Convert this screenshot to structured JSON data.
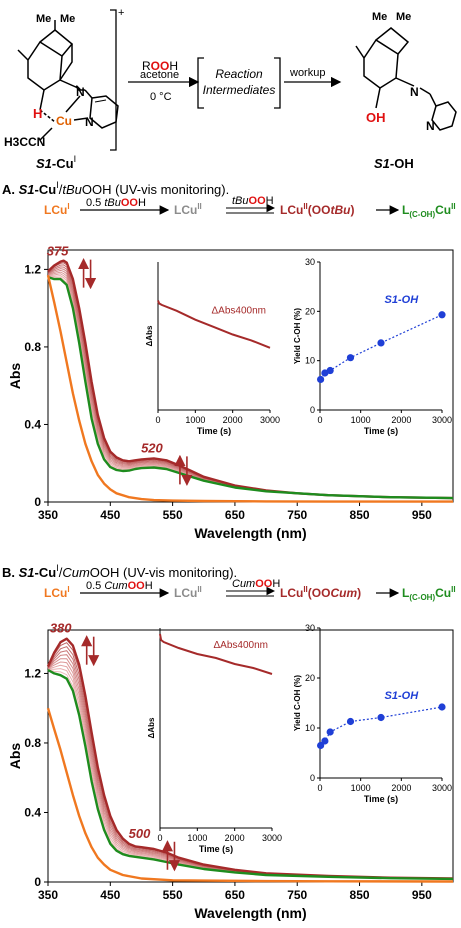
{
  "colors": {
    "orange": "#f07820",
    "gray": "#8c8c8c",
    "darkred": "#a52a2a",
    "green": "#1e8c1e",
    "blue": "#1f3fd6",
    "red": "#e01010",
    "cu": "#e06000"
  },
  "scheme": {
    "reactant_label_a": "S1",
    "reactant_label_b": "-Cu",
    "reactant_label_sup": "I",
    "charge": "+",
    "ligand_label": "H3CCN",
    "cu_label": "Cu",
    "n_label": "N",
    "h_label": "H",
    "me_label": "Me",
    "reagent_r": "R",
    "reagent_oo": "OO",
    "reagent_h": "H",
    "solvent": "acetone",
    "temperature": "0 °C",
    "intermediates_line1": "Reaction",
    "intermediates_line2": "Intermediates",
    "workup": "workup",
    "product_label_a": "S1",
    "product_label_b": "-OH",
    "oh_label": "OH"
  },
  "panels": [
    {
      "letter": "A.",
      "title_a": "S1",
      "title_b": "-Cu",
      "title_sup": "I",
      "title_c": "/",
      "title_oxidant": "tBu",
      "title_d": "OOH (UV-vis monitoring).",
      "steps": {
        "lcu1": "LCu",
        "lcu1_sup": "I",
        "equiv": "0.5 ",
        "oxidant": "tBu",
        "oo": "OO",
        "h": "H",
        "lcu2": "LCu",
        "lcu2_sup": "II",
        "int_a": "LCu",
        "int_sup": "II",
        "int_b": "(OO",
        "int_c": "tBu",
        "int_d": ")",
        "prod_a": "L",
        "prod_sub": "(C-OH)",
        "prod_b": "Cu",
        "prod_sup": "II"
      }
    },
    {
      "letter": "B.",
      "title_a": "S1",
      "title_b": "-Cu",
      "title_sup": "I",
      "title_c": "/",
      "title_oxidant": "Cum",
      "title_d": "OOH (UV-vis monitoring).",
      "steps": {
        "lcu1": "LCu",
        "lcu1_sup": "I",
        "equiv": "0.5 ",
        "oxidant": "Cum",
        "oo": "OO",
        "h": "H",
        "lcu2": "LCu",
        "lcu2_sup": "II",
        "int_a": "LCu",
        "int_sup": "II",
        "int_b": "(OO",
        "int_c": "Cum",
        "int_d": ")",
        "prod_a": "L",
        "prod_sub": "(C-OH)",
        "prod_b": "Cu",
        "prod_sup": "II"
      }
    }
  ],
  "chart_data": [
    {
      "type": "line",
      "panel": "A",
      "xlabel": "Wavelength (nm)",
      "ylabel": "Abs",
      "xlim": [
        350,
        1000
      ],
      "ylim": [
        0,
        1.3
      ],
      "xticks": [
        350,
        450,
        550,
        650,
        750,
        850,
        950
      ],
      "yticks": [
        0,
        0.4,
        0.8,
        1.2
      ],
      "peak_labels": [
        {
          "text": "375",
          "x": 375,
          "y": 1.24,
          "arrow": "up-down"
        },
        {
          "text": "520",
          "x": 520,
          "y": 0.225,
          "arrow": "up-down"
        }
      ],
      "series": [
        {
          "color": "orange",
          "x": [
            350,
            360,
            370,
            380,
            390,
            400,
            410,
            420,
            430,
            440,
            450,
            460,
            480,
            500,
            520,
            550,
            600,
            650,
            700,
            800,
            900,
            1000
          ],
          "y": [
            1.17,
            1.03,
            0.88,
            0.72,
            0.56,
            0.42,
            0.3,
            0.21,
            0.14,
            0.095,
            0.065,
            0.045,
            0.025,
            0.015,
            0.01,
            0.007,
            0.005,
            0.004,
            0.003,
            0.002,
            0.002,
            0.002
          ]
        },
        {
          "color": "darkred",
          "x": [
            350,
            360,
            370,
            375,
            380,
            390,
            400,
            410,
            420,
            430,
            440,
            450,
            460,
            470,
            480,
            490,
            500,
            520,
            540,
            560,
            580,
            600,
            650,
            700,
            750,
            800,
            900,
            1000
          ],
          "y": [
            1.19,
            1.22,
            1.24,
            1.245,
            1.235,
            1.15,
            1.0,
            0.82,
            0.62,
            0.45,
            0.33,
            0.26,
            0.23,
            0.215,
            0.21,
            0.215,
            0.22,
            0.225,
            0.215,
            0.19,
            0.16,
            0.13,
            0.085,
            0.06,
            0.045,
            0.035,
            0.025,
            0.02
          ]
        },
        {
          "color": "green",
          "x": [
            350,
            360,
            370,
            380,
            390,
            400,
            410,
            420,
            430,
            440,
            450,
            460,
            470,
            480,
            490,
            500,
            520,
            540,
            560,
            580,
            600,
            650,
            700,
            800,
            900,
            1000
          ],
          "y": [
            1.16,
            1.15,
            1.15,
            1.12,
            1.0,
            0.82,
            0.62,
            0.43,
            0.3,
            0.22,
            0.18,
            0.165,
            0.16,
            0.162,
            0.17,
            0.175,
            0.178,
            0.17,
            0.15,
            0.13,
            0.11,
            0.075,
            0.055,
            0.035,
            0.025,
            0.02
          ]
        }
      ],
      "inset_kinetics": {
        "xlabel": "Time (s)",
        "ylabel": "ΔAbs",
        "series_label": "ΔAbs400nm",
        "xlim": [
          0,
          3000
        ],
        "xticks": [
          0,
          1000,
          2000,
          3000
        ],
        "ylim": [
          0,
          1
        ],
        "x": [
          0,
          30,
          100,
          500,
          1000,
          1500,
          2000,
          2500,
          3000
        ],
        "y": [
          0.74,
          0.72,
          0.71,
          0.67,
          0.61,
          0.56,
          0.51,
          0.47,
          0.42
        ]
      },
      "inset_yield": {
        "xlabel": "Time (s)",
        "ylabel": "Yield C-OH (%)",
        "series_label": "S1-OH",
        "xlim": [
          0,
          3000
        ],
        "xticks": [
          0,
          1000,
          2000,
          3000
        ],
        "ylim": [
          0,
          30
        ],
        "yticks": [
          0,
          10,
          20,
          30
        ],
        "x": [
          15,
          120,
          250,
          750,
          1500,
          3000
        ],
        "y": [
          6.2,
          7.5,
          8.0,
          10.6,
          13.6,
          19.3
        ]
      }
    },
    {
      "type": "line",
      "panel": "B",
      "xlabel": "Wavelength (nm)",
      "ylabel": "Abs",
      "xlim": [
        350,
        1000
      ],
      "ylim": [
        0,
        1.45
      ],
      "xticks": [
        350,
        450,
        550,
        650,
        750,
        850,
        950
      ],
      "yticks": [
        0,
        0.4,
        0.8,
        1.2
      ],
      "peak_labels": [
        {
          "text": "380",
          "x": 380,
          "y": 1.4,
          "arrow": "up-down"
        },
        {
          "text": "500",
          "x": 500,
          "y": 0.22,
          "arrow": "up-down"
        }
      ],
      "series": [
        {
          "color": "orange",
          "x": [
            350,
            360,
            370,
            380,
            390,
            400,
            410,
            420,
            430,
            440,
            450,
            470,
            500,
            550,
            600,
            700,
            800,
            1000
          ],
          "y": [
            1.0,
            0.88,
            0.76,
            0.63,
            0.5,
            0.38,
            0.28,
            0.2,
            0.14,
            0.1,
            0.07,
            0.04,
            0.02,
            0.01,
            0.008,
            0.005,
            0.004,
            0.003
          ]
        },
        {
          "color": "darkred",
          "x": [
            350,
            360,
            370,
            380,
            390,
            400,
            410,
            420,
            430,
            440,
            450,
            460,
            470,
            480,
            490,
            500,
            520,
            540,
            560,
            600,
            650,
            700,
            800,
            900,
            1000
          ],
          "y": [
            1.24,
            1.32,
            1.38,
            1.4,
            1.36,
            1.25,
            1.07,
            0.86,
            0.66,
            0.5,
            0.38,
            0.3,
            0.25,
            0.22,
            0.205,
            0.2,
            0.19,
            0.17,
            0.14,
            0.1,
            0.07,
            0.05,
            0.035,
            0.025,
            0.02
          ]
        },
        {
          "color": "green",
          "x": [
            350,
            360,
            370,
            380,
            390,
            400,
            410,
            420,
            430,
            440,
            450,
            460,
            470,
            480,
            490,
            500,
            520,
            540,
            560,
            600,
            650,
            700,
            800,
            900,
            1000
          ],
          "y": [
            1.22,
            1.2,
            1.19,
            1.17,
            1.1,
            0.96,
            0.78,
            0.58,
            0.42,
            0.3,
            0.22,
            0.18,
            0.16,
            0.15,
            0.145,
            0.14,
            0.13,
            0.115,
            0.1,
            0.075,
            0.055,
            0.04,
            0.03,
            0.022,
            0.018
          ]
        }
      ],
      "inset_kinetics": {
        "xlabel": "Time (s)",
        "ylabel": "ΔAbs",
        "series_label": "ΔAbs400nm",
        "xlim": [
          0,
          3000
        ],
        "xticks": [
          0,
          1000,
          2000,
          3000
        ],
        "ylim": [
          0,
          1
        ],
        "x": [
          0,
          30,
          100,
          500,
          1000,
          1500,
          2000,
          2500,
          3000
        ],
        "y": [
          0.97,
          0.94,
          0.93,
          0.9,
          0.87,
          0.85,
          0.82,
          0.8,
          0.77
        ]
      },
      "inset_yield": {
        "xlabel": "Time (s)",
        "ylabel": "Yield C-OH (%)",
        "series_label": "S1-OH",
        "xlim": [
          0,
          3000
        ],
        "xticks": [
          0,
          1000,
          2000,
          3000
        ],
        "ylim": [
          0,
          30
        ],
        "yticks": [
          0,
          10,
          20,
          30
        ],
        "x": [
          15,
          120,
          250,
          750,
          1500,
          3000
        ],
        "y": [
          6.5,
          7.4,
          9.2,
          11.3,
          12.1,
          14.2
        ]
      }
    }
  ]
}
